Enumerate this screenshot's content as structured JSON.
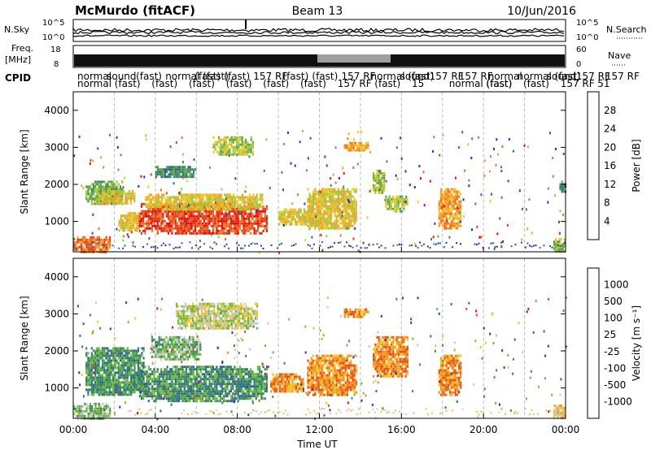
{
  "header": {
    "station": "McMurdo (fitACF)",
    "beam": "Beam 13",
    "date": "10/Jun/2016"
  },
  "summary": {
    "nsky_label": "N.Sky",
    "nsearch_label": "N.Search",
    "noise_ticks_left": [
      "10^5",
      "10^0"
    ],
    "noise_ticks_right": [
      "10^5",
      "10^0"
    ],
    "freq_label": "Freq.",
    "freq_unit": "[MHz]",
    "freq_ticks": [
      "18",
      "8"
    ],
    "nave_label": "Nave",
    "nave_ticks": [
      "60",
      "0"
    ],
    "cpid_label": "CPID",
    "cpid_row1": [
      "normal",
      "sound",
      "(fast)",
      "normal (fast)",
      "(fast)",
      "(fast)",
      "157 RF",
      "(fast)",
      "(fast)",
      "157 RF",
      "normal (fast)",
      "sound",
      "157 RF",
      "157 RF",
      "normal",
      "normal (fast)",
      "sound",
      "157 RF",
      "157 RF"
    ],
    "cpid_row2": [
      "normal",
      "(fast)",
      "(fast)",
      "(fast)",
      "(fast)",
      "(fast)",
      "(fast)",
      "157 RF",
      "(fast)",
      "15",
      "normal (fast)",
      "(fast)",
      "(fast)",
      "157 RF",
      "51"
    ]
  },
  "chart_data": [
    {
      "type": "heatmap",
      "panel": "power",
      "xlabel": "Time UT",
      "ylabel": "Slant Range [km]",
      "x_ticks": [
        "00:00",
        "04:00",
        "08:00",
        "12:00",
        "16:00",
        "20:00",
        "00:00"
      ],
      "xlim_hours": [
        0,
        24
      ],
      "y_ticks": [
        1000,
        2000,
        3000,
        4000
      ],
      "ylim": [
        180,
        4500
      ],
      "colorbar_label": "Power [dB]",
      "colorbar_ticks": [
        "28",
        "24",
        "20",
        "16",
        "12",
        "8",
        "4"
      ],
      "colorbar_range": [
        0,
        30
      ],
      "colors": [
        "#1e2ae6",
        "#2a4da8",
        "#2f6b7a",
        "#3d8c5a",
        "#5aa64c",
        "#a3c63a",
        "#e8c82a",
        "#f2a129",
        "#f0701f",
        "#e63a1a",
        "#e01010"
      ],
      "regions": [
        {
          "t0": 0.0,
          "t1": 1.8,
          "r0": 180,
          "r1": 600,
          "v": 24
        },
        {
          "t0": 0.6,
          "t1": 2.4,
          "r0": 1450,
          "r1": 2100,
          "v": 12
        },
        {
          "t0": 1.2,
          "t1": 3.0,
          "r0": 1500,
          "r1": 1850,
          "v": 18
        },
        {
          "t0": 2.2,
          "t1": 3.3,
          "r0": 750,
          "r1": 1250,
          "v": 18
        },
        {
          "t0": 3.2,
          "t1": 9.4,
          "r0": 700,
          "r1": 1500,
          "v": 26
        },
        {
          "t0": 3.5,
          "t1": 9.2,
          "r0": 1300,
          "r1": 1750,
          "v": 18
        },
        {
          "t0": 4.0,
          "t1": 6.0,
          "r0": 2200,
          "r1": 2500,
          "v": 10
        },
        {
          "t0": 6.8,
          "t1": 8.8,
          "r0": 2800,
          "r1": 3300,
          "v": 14
        },
        {
          "t0": 10.0,
          "t1": 11.5,
          "r0": 900,
          "r1": 1350,
          "v": 18
        },
        {
          "t0": 11.4,
          "t1": 13.8,
          "r0": 800,
          "r1": 1900,
          "v": 17
        },
        {
          "t0": 13.2,
          "t1": 14.4,
          "r0": 2950,
          "r1": 3150,
          "v": 22
        },
        {
          "t0": 14.6,
          "t1": 15.2,
          "r0": 1750,
          "r1": 2400,
          "v": 14
        },
        {
          "t0": 15.2,
          "t1": 16.3,
          "r0": 1300,
          "r1": 1700,
          "v": 14
        },
        {
          "t0": 17.8,
          "t1": 18.9,
          "r0": 800,
          "r1": 1900,
          "v": 20
        },
        {
          "t0": 23.4,
          "t1": 24.0,
          "r0": 180,
          "r1": 550,
          "v": 14
        },
        {
          "t0": 23.7,
          "t1": 24.0,
          "r0": 1800,
          "r1": 2100,
          "v": 10
        }
      ]
    },
    {
      "type": "heatmap",
      "panel": "velocity",
      "xlabel": "Time UT",
      "ylabel": "Slant Range [km]",
      "x_ticks": [
        "00:00",
        "04:00",
        "08:00",
        "12:00",
        "16:00",
        "20:00",
        "00:00"
      ],
      "xlim_hours": [
        0,
        24
      ],
      "y_ticks": [
        1000,
        2000,
        3000,
        4000
      ],
      "ylim": [
        180,
        4500
      ],
      "colorbar_label": "Velocity [m s⁻¹]",
      "colorbar_ticks": [
        "1000",
        "500",
        "100",
        "25",
        "-25",
        "-100",
        "-500",
        "-1000"
      ],
      "colors": [
        "#2040b0",
        "#2e6a8c",
        "#3d8c5a",
        "#6cba3c",
        "#c8c8c8",
        "#f2c12a",
        "#f0901f",
        "#e65014",
        "#e01010"
      ],
      "regions": [
        {
          "t0": 0.0,
          "t1": 1.8,
          "r0": 180,
          "r1": 600,
          "v": 3
        },
        {
          "t0": 0.6,
          "t1": 3.4,
          "r0": 800,
          "r1": 2100,
          "v": 2
        },
        {
          "t0": 3.2,
          "t1": 9.4,
          "r0": 650,
          "r1": 1600,
          "v": 2
        },
        {
          "t0": 3.8,
          "t1": 6.2,
          "r0": 1800,
          "r1": 2400,
          "v": 3
        },
        {
          "t0": 5.0,
          "t1": 9.0,
          "r0": 2600,
          "r1": 3300,
          "v": 4
        },
        {
          "t0": 9.6,
          "t1": 11.2,
          "r0": 900,
          "r1": 1400,
          "v": 6
        },
        {
          "t0": 11.4,
          "t1": 13.8,
          "r0": 800,
          "r1": 1900,
          "v": 6
        },
        {
          "t0": 13.2,
          "t1": 14.4,
          "r0": 2950,
          "r1": 3150,
          "v": 6
        },
        {
          "t0": 14.6,
          "t1": 16.3,
          "r0": 1300,
          "r1": 2400,
          "v": 6
        },
        {
          "t0": 17.8,
          "t1": 18.9,
          "r0": 800,
          "r1": 1900,
          "v": 6
        },
        {
          "t0": 23.4,
          "t1": 24.0,
          "r0": 180,
          "r1": 550,
          "v": 5
        }
      ]
    }
  ]
}
